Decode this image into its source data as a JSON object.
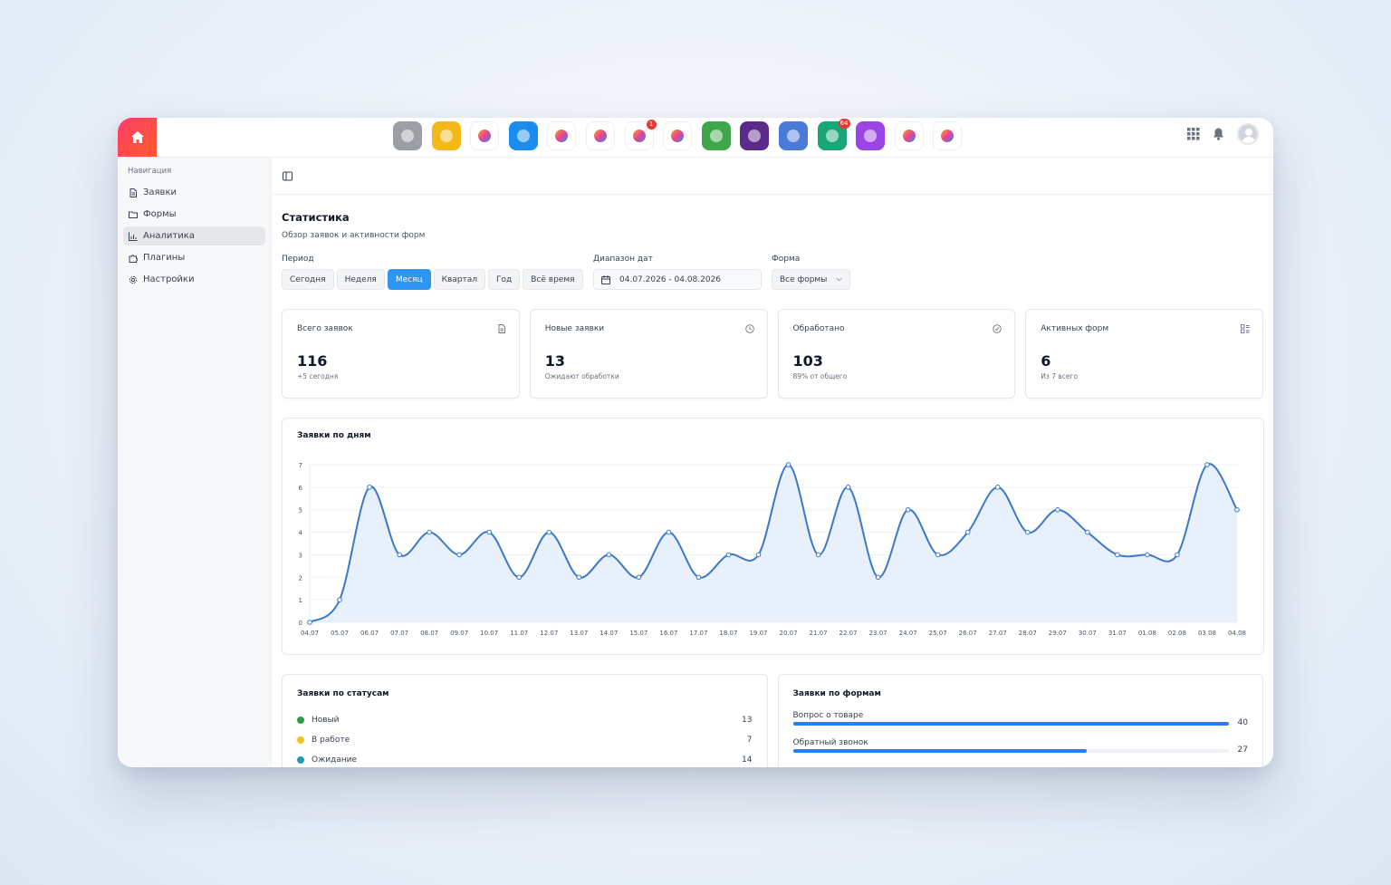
{
  "dock": [
    {
      "name": "settings-app-icon",
      "bg": "#9aa0a6",
      "badge": ""
    },
    {
      "name": "camera-app-icon",
      "bg": "#f5b819",
      "badge": ""
    },
    {
      "name": "sparkle-app-icon",
      "bg": "#ffffff",
      "badge": ""
    },
    {
      "name": "folder-app-icon",
      "bg": "#1a8cf0",
      "badge": ""
    },
    {
      "name": "lifebuoy-app-icon",
      "bg": "#ffffff",
      "badge": ""
    },
    {
      "name": "mosaic-app-icon",
      "bg": "#ffffff",
      "badge": ""
    },
    {
      "name": "magic-wand-app-icon",
      "bg": "#ffffff",
      "badge": "1"
    },
    {
      "name": "triangles-app-icon",
      "bg": "#ffffff",
      "badge": ""
    },
    {
      "name": "list-app-icon",
      "bg": "#3fa64a",
      "badge": ""
    },
    {
      "name": "lens-app-icon",
      "bg": "#5b2b8a",
      "badge": ""
    },
    {
      "name": "document-app-icon",
      "bg": "#4b7bd8",
      "badge": ""
    },
    {
      "name": "dollar-app-icon",
      "bg": "#1aa676",
      "badge": "64"
    },
    {
      "name": "widgets-app-icon",
      "bg": "#9b45e6",
      "badge": ""
    },
    {
      "name": "stripes-app-icon",
      "bg": "#ffffff",
      "badge": ""
    },
    {
      "name": "star-app-icon",
      "bg": "#ffffff",
      "badge": ""
    }
  ],
  "sidebar": {
    "caption": "Навигация",
    "items": [
      {
        "label": "Заявки",
        "icon": "file-icon"
      },
      {
        "label": "Формы",
        "icon": "folder-icon"
      },
      {
        "label": "Аналитика",
        "icon": "chart-icon"
      },
      {
        "label": "Плагины",
        "icon": "puzzle-icon"
      },
      {
        "label": "Настройки",
        "icon": "gear-icon"
      }
    ]
  },
  "page": {
    "title": "Статистика",
    "subtitle": "Обзор заявок и активности форм"
  },
  "filters": {
    "period_label": "Период",
    "periods": [
      "Сегодня",
      "Неделя",
      "Месяц",
      "Квартал",
      "Год",
      "Всё время"
    ],
    "active_period": "Месяц",
    "range_label": "Диапазон дат",
    "range_value": "04.07.2026 - 04.08.2026",
    "form_label": "Форма",
    "form_value": "Все формы"
  },
  "cards": [
    {
      "title": "Всего заявок",
      "value": "116",
      "note": "+5 сегодня"
    },
    {
      "title": "Новые заявки",
      "value": "13",
      "note": "Ожидают обработки"
    },
    {
      "title": "Обработано",
      "value": "103",
      "note": "89% от общего"
    },
    {
      "title": "Активных форм",
      "value": "6",
      "note": "Из 7 всего"
    }
  ],
  "chart_title": "Заявки по дням",
  "chart_data": {
    "type": "area",
    "title": "Заявки по дням",
    "x": [
      "04.07",
      "05.07",
      "06.07",
      "07.07",
      "08.07",
      "09.07",
      "10.07",
      "11.07",
      "12.07",
      "13.07",
      "14.07",
      "15.07",
      "16.07",
      "17.07",
      "18.07",
      "19.07",
      "20.07",
      "21.07",
      "22.07",
      "23.07",
      "24.07",
      "25.07",
      "26.07",
      "27.07",
      "28.07",
      "29.07",
      "30.07",
      "31.07",
      "01.08",
      "02.08",
      "03.08",
      "04.08"
    ],
    "values": [
      0,
      1,
      6,
      3,
      4,
      3,
      4,
      2,
      4,
      2,
      3,
      2,
      4,
      2,
      3,
      3,
      7,
      3,
      6,
      2,
      5,
      3,
      4,
      6,
      4,
      5,
      4,
      3,
      3,
      3,
      7,
      5
    ],
    "ylim": [
      0,
      7
    ],
    "yticks": [
      "0",
      "1",
      "2",
      "3",
      "4",
      "5",
      "6",
      "7"
    ],
    "grid": true,
    "color": "#3b78c9",
    "fill": "#e8f0fb"
  },
  "statuses": {
    "title": "Заявки по статусам",
    "items": [
      {
        "label": "Новый",
        "count": "13",
        "color": "#2e9e44"
      },
      {
        "label": "В работе",
        "count": "7",
        "color": "#f2c21b"
      },
      {
        "label": "Ожидание",
        "count": "14",
        "color": "#1e9bb0"
      }
    ]
  },
  "forms": {
    "title": "Заявки по формам",
    "items": [
      {
        "label": "Вопрос о товаре",
        "count": "40",
        "fraction": 1.0
      },
      {
        "label": "Обратный звонок",
        "count": "27",
        "fraction": 0.675
      }
    ]
  }
}
